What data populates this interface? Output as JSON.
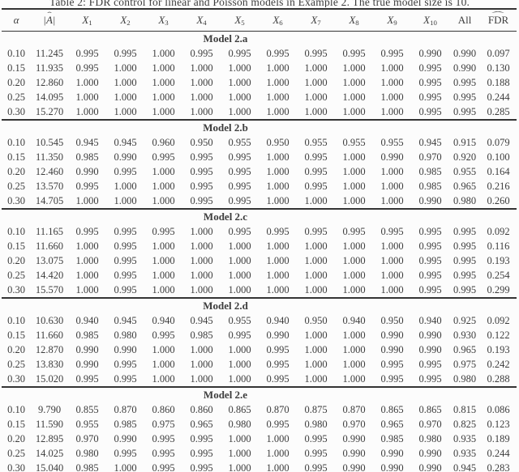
{
  "caption": "Table 2: FDR control for linear and Poisson models in Example 2. The true model size is 10.",
  "header": {
    "columns": [
      {
        "id": "alpha",
        "style": "italic",
        "text": "α"
      },
      {
        "id": "model-size",
        "style": "abs-hat",
        "text": "A",
        "hat": "ˆ",
        "bar": "|"
      },
      {
        "id": "x1",
        "style": "var-sub",
        "text": "X",
        "sub": "1"
      },
      {
        "id": "x2",
        "style": "var-sub",
        "text": "X",
        "sub": "2"
      },
      {
        "id": "x3",
        "style": "var-sub",
        "text": "X",
        "sub": "3"
      },
      {
        "id": "x4",
        "style": "var-sub",
        "text": "X",
        "sub": "4"
      },
      {
        "id": "x5",
        "style": "var-sub",
        "text": "X",
        "sub": "5"
      },
      {
        "id": "x6",
        "style": "var-sub",
        "text": "X",
        "sub": "6"
      },
      {
        "id": "x7",
        "style": "var-sub",
        "text": "X",
        "sub": "7"
      },
      {
        "id": "x8",
        "style": "var-sub",
        "text": "X",
        "sub": "8"
      },
      {
        "id": "x9",
        "style": "var-sub",
        "text": "X",
        "sub": "9"
      },
      {
        "id": "x10",
        "style": "var-sub",
        "text": "X",
        "sub": "10"
      },
      {
        "id": "all",
        "style": "plain",
        "text": "All"
      },
      {
        "id": "fdr",
        "style": "widehat",
        "text": "FDR",
        "hat": "ˆ"
      }
    ]
  },
  "blocks": [
    {
      "title": "Model 2.a",
      "rows": [
        [
          "0.10",
          "11.245",
          "0.995",
          "0.995",
          "1.000",
          "0.995",
          "0.995",
          "0.995",
          "0.995",
          "0.995",
          "0.995",
          "0.990",
          "0.990",
          "0.097"
        ],
        [
          "0.15",
          "11.935",
          "0.995",
          "1.000",
          "1.000",
          "1.000",
          "1.000",
          "1.000",
          "1.000",
          "1.000",
          "1.000",
          "0.995",
          "0.990",
          "0.130"
        ],
        [
          "0.20",
          "12.860",
          "1.000",
          "1.000",
          "1.000",
          "1.000",
          "1.000",
          "1.000",
          "1.000",
          "1.000",
          "1.000",
          "0.995",
          "0.995",
          "0.188"
        ],
        [
          "0.25",
          "14.095",
          "1.000",
          "1.000",
          "1.000",
          "1.000",
          "1.000",
          "1.000",
          "1.000",
          "1.000",
          "1.000",
          "0.995",
          "0.995",
          "0.244"
        ],
        [
          "0.30",
          "15.270",
          "1.000",
          "1.000",
          "1.000",
          "1.000",
          "1.000",
          "1.000",
          "1.000",
          "1.000",
          "1.000",
          "0.995",
          "0.995",
          "0.285"
        ]
      ]
    },
    {
      "title": "Model 2.b",
      "rows": [
        [
          "0.10",
          "10.545",
          "0.945",
          "0.945",
          "0.960",
          "0.950",
          "0.955",
          "0.950",
          "0.955",
          "0.955",
          "0.955",
          "0.945",
          "0.915",
          "0.079"
        ],
        [
          "0.15",
          "11.350",
          "0.985",
          "0.990",
          "0.995",
          "0.995",
          "0.995",
          "1.000",
          "0.995",
          "1.000",
          "0.990",
          "0.970",
          "0.920",
          "0.100"
        ],
        [
          "0.20",
          "12.460",
          "0.990",
          "0.995",
          "1.000",
          "0.995",
          "0.995",
          "1.000",
          "0.995",
          "1.000",
          "1.000",
          "0.985",
          "0.955",
          "0.164"
        ],
        [
          "0.25",
          "13.570",
          "0.995",
          "1.000",
          "1.000",
          "0.995",
          "0.995",
          "1.000",
          "0.995",
          "1.000",
          "1.000",
          "0.985",
          "0.965",
          "0.216"
        ],
        [
          "0.30",
          "14.705",
          "1.000",
          "1.000",
          "1.000",
          "0.995",
          "0.995",
          "1.000",
          "1.000",
          "1.000",
          "1.000",
          "0.990",
          "0.980",
          "0.260"
        ]
      ]
    },
    {
      "title": "Model 2.c",
      "rows": [
        [
          "0.10",
          "11.165",
          "0.995",
          "0.995",
          "0.995",
          "1.000",
          "0.995",
          "0.995",
          "0.995",
          "0.995",
          "0.995",
          "0.995",
          "0.995",
          "0.092"
        ],
        [
          "0.15",
          "11.660",
          "1.000",
          "0.995",
          "1.000",
          "1.000",
          "1.000",
          "1.000",
          "1.000",
          "1.000",
          "1.000",
          "0.995",
          "0.995",
          "0.116"
        ],
        [
          "0.20",
          "13.075",
          "1.000",
          "0.995",
          "1.000",
          "1.000",
          "1.000",
          "1.000",
          "1.000",
          "1.000",
          "1.000",
          "0.995",
          "0.995",
          "0.193"
        ],
        [
          "0.25",
          "14.420",
          "1.000",
          "0.995",
          "1.000",
          "1.000",
          "1.000",
          "1.000",
          "1.000",
          "1.000",
          "1.000",
          "0.995",
          "0.995",
          "0.254"
        ],
        [
          "0.30",
          "15.570",
          "1.000",
          "0.995",
          "1.000",
          "1.000",
          "1.000",
          "1.000",
          "1.000",
          "1.000",
          "1.000",
          "0.995",
          "0.995",
          "0.299"
        ]
      ]
    },
    {
      "title": "Model 2.d",
      "rows": [
        [
          "0.10",
          "10.630",
          "0.940",
          "0.945",
          "0.940",
          "0.945",
          "0.955",
          "0.940",
          "0.950",
          "0.940",
          "0.950",
          "0.940",
          "0.925",
          "0.092"
        ],
        [
          "0.15",
          "11.660",
          "0.985",
          "0.980",
          "0.995",
          "0.985",
          "0.995",
          "0.990",
          "1.000",
          "1.000",
          "0.990",
          "0.990",
          "0.930",
          "0.122"
        ],
        [
          "0.20",
          "12.870",
          "0.990",
          "0.990",
          "1.000",
          "1.000",
          "1.000",
          "0.995",
          "1.000",
          "1.000",
          "0.990",
          "0.990",
          "0.965",
          "0.193"
        ],
        [
          "0.25",
          "13.830",
          "0.990",
          "0.995",
          "1.000",
          "1.000",
          "1.000",
          "0.995",
          "1.000",
          "1.000",
          "0.995",
          "0.995",
          "0.975",
          "0.242"
        ],
        [
          "0.30",
          "15.020",
          "0.995",
          "0.995",
          "1.000",
          "1.000",
          "1.000",
          "0.995",
          "1.000",
          "1.000",
          "0.995",
          "0.995",
          "0.980",
          "0.288"
        ]
      ]
    },
    {
      "title": "Model 2.e",
      "rows": [
        [
          "0.10",
          "9.790",
          "0.855",
          "0.870",
          "0.860",
          "0.860",
          "0.865",
          "0.870",
          "0.875",
          "0.870",
          "0.865",
          "0.865",
          "0.815",
          "0.086"
        ],
        [
          "0.15",
          "11.590",
          "0.955",
          "0.985",
          "0.975",
          "0.965",
          "0.980",
          "0.995",
          "0.980",
          "0.970",
          "0.965",
          "0.970",
          "0.825",
          "0.123"
        ],
        [
          "0.20",
          "12.895",
          "0.970",
          "0.990",
          "0.995",
          "0.995",
          "1.000",
          "1.000",
          "0.995",
          "0.990",
          "0.985",
          "0.980",
          "0.935",
          "0.189"
        ],
        [
          "0.25",
          "14.025",
          "0.980",
          "0.995",
          "0.995",
          "0.995",
          "1.000",
          "1.000",
          "0.995",
          "0.990",
          "0.990",
          "0.990",
          "0.935",
          "0.244"
        ],
        [
          "0.30",
          "15.040",
          "0.985",
          "1.000",
          "0.995",
          "0.995",
          "1.000",
          "1.000",
          "0.995",
          "0.990",
          "0.990",
          "0.990",
          "0.945",
          "0.283"
        ]
      ]
    }
  ]
}
